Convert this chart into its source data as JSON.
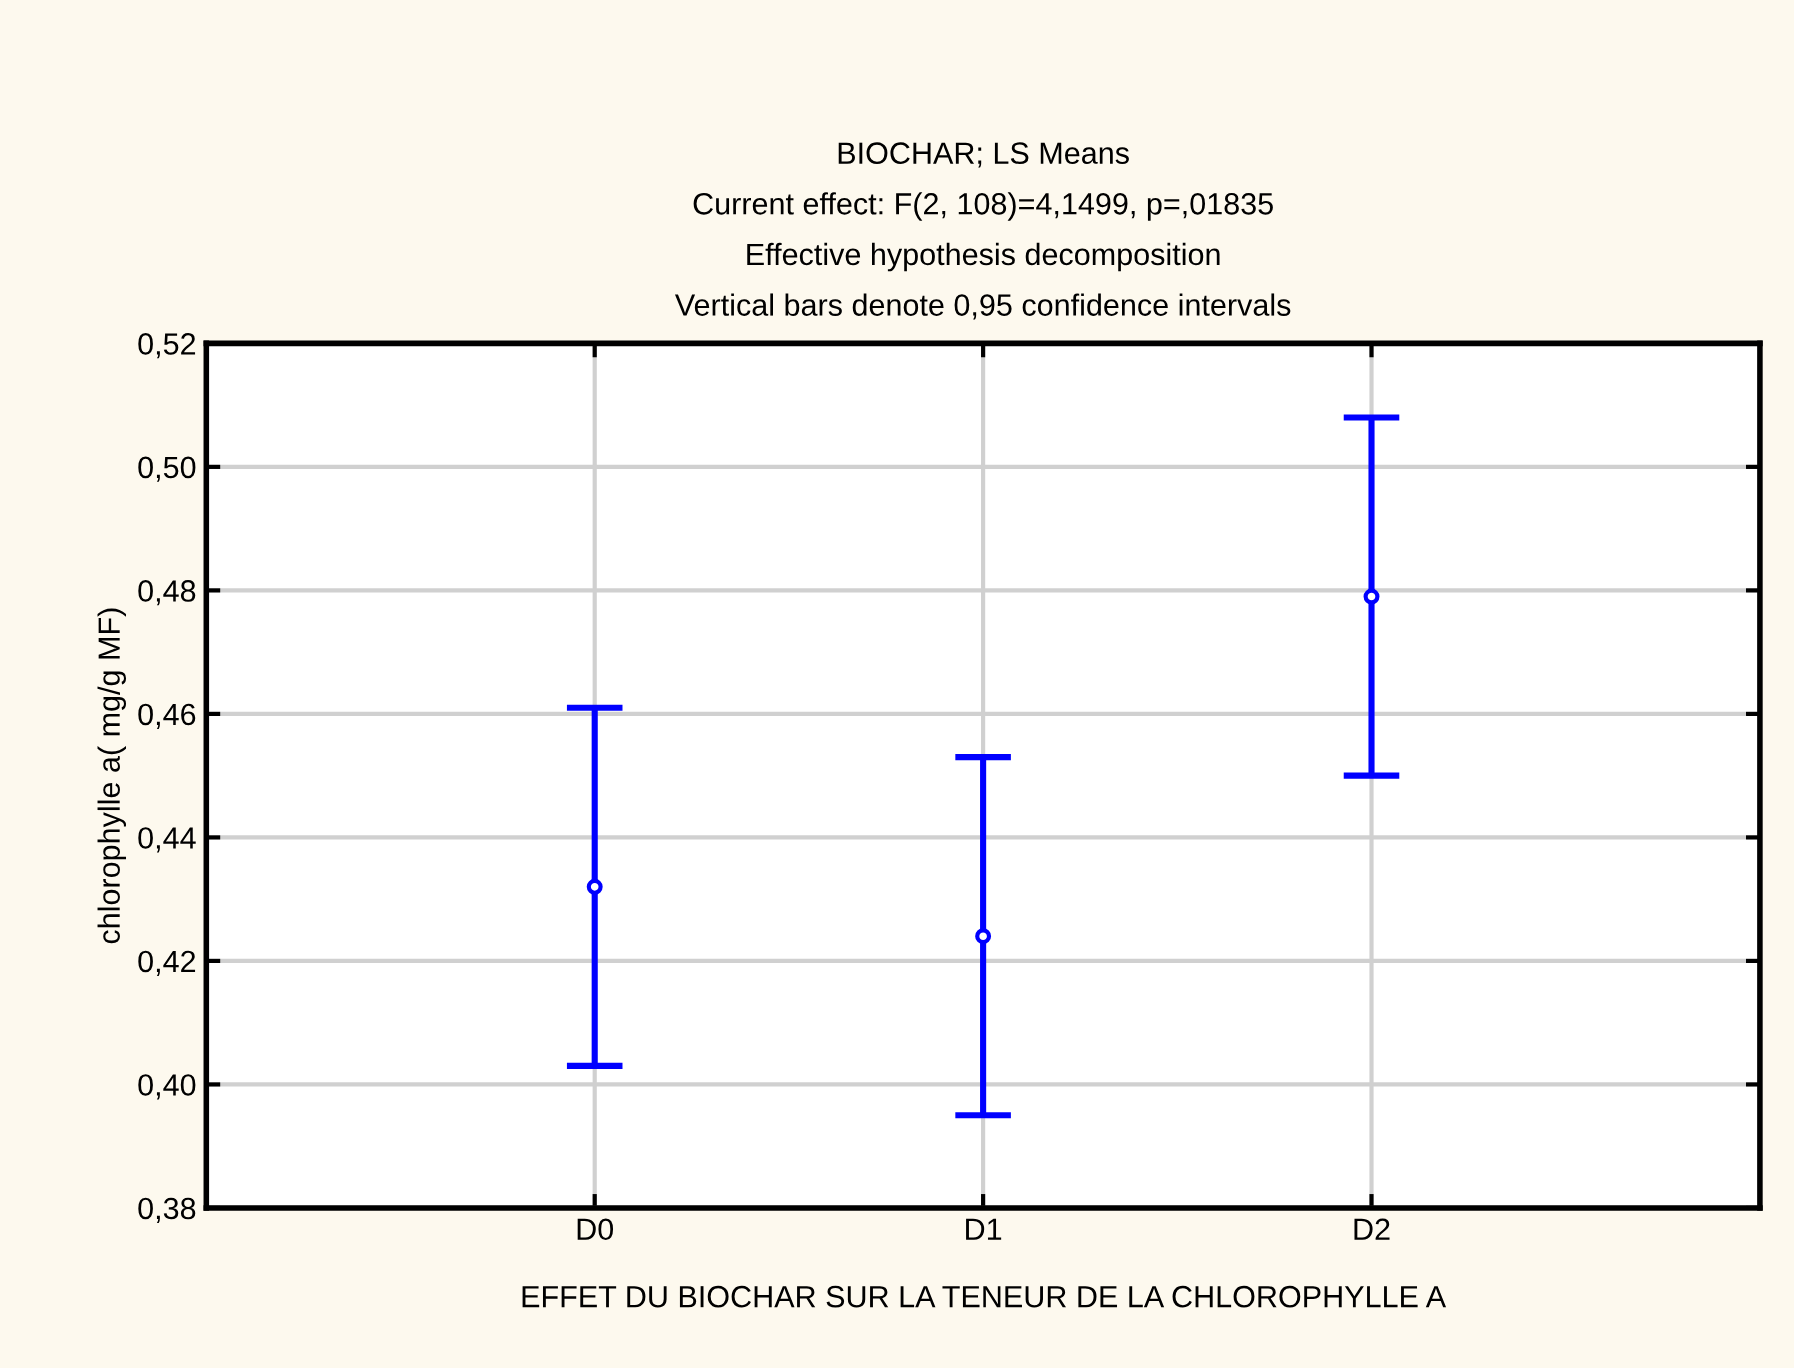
{
  "chart_data": {
    "type": "scatter",
    "title": "BIOCHAR; LS Means",
    "subtitle": "Current effect: F(2, 108)=4,1499, p=,01835\nEffective hypothesis decomposition\nVertical bars denote 0,95 confidence intervals",
    "xlabel": "EFFET DU BIOCHAR SUR LA TENEUR DE LA CHLOROPHYLLE A",
    "ylabel": "chlorophylle a( mg/g MF)",
    "categories": [
      "D0",
      "D1",
      "D2"
    ],
    "series": [
      {
        "color": "#0000ff",
        "values": [
          0.432,
          0.424,
          0.479
        ],
        "errors": [
          0.029,
          0.029,
          0.029
        ]
      }
    ],
    "ylim": [
      0.38,
      0.52
    ],
    "yticks": [
      {
        "value": 0.38,
        "label": "0,38"
      },
      {
        "value": 0.4,
        "label": "0,40"
      },
      {
        "value": 0.42,
        "label": "0,42"
      },
      {
        "value": 0.44,
        "label": "0,44"
      },
      {
        "value": 0.46,
        "label": "0,46"
      },
      {
        "value": 0.48,
        "label": "0,48"
      },
      {
        "value": 0.5,
        "label": "0,50"
      },
      {
        "value": 0.52,
        "label": "0,52"
      }
    ],
    "grid": true,
    "marker": "circle"
  }
}
